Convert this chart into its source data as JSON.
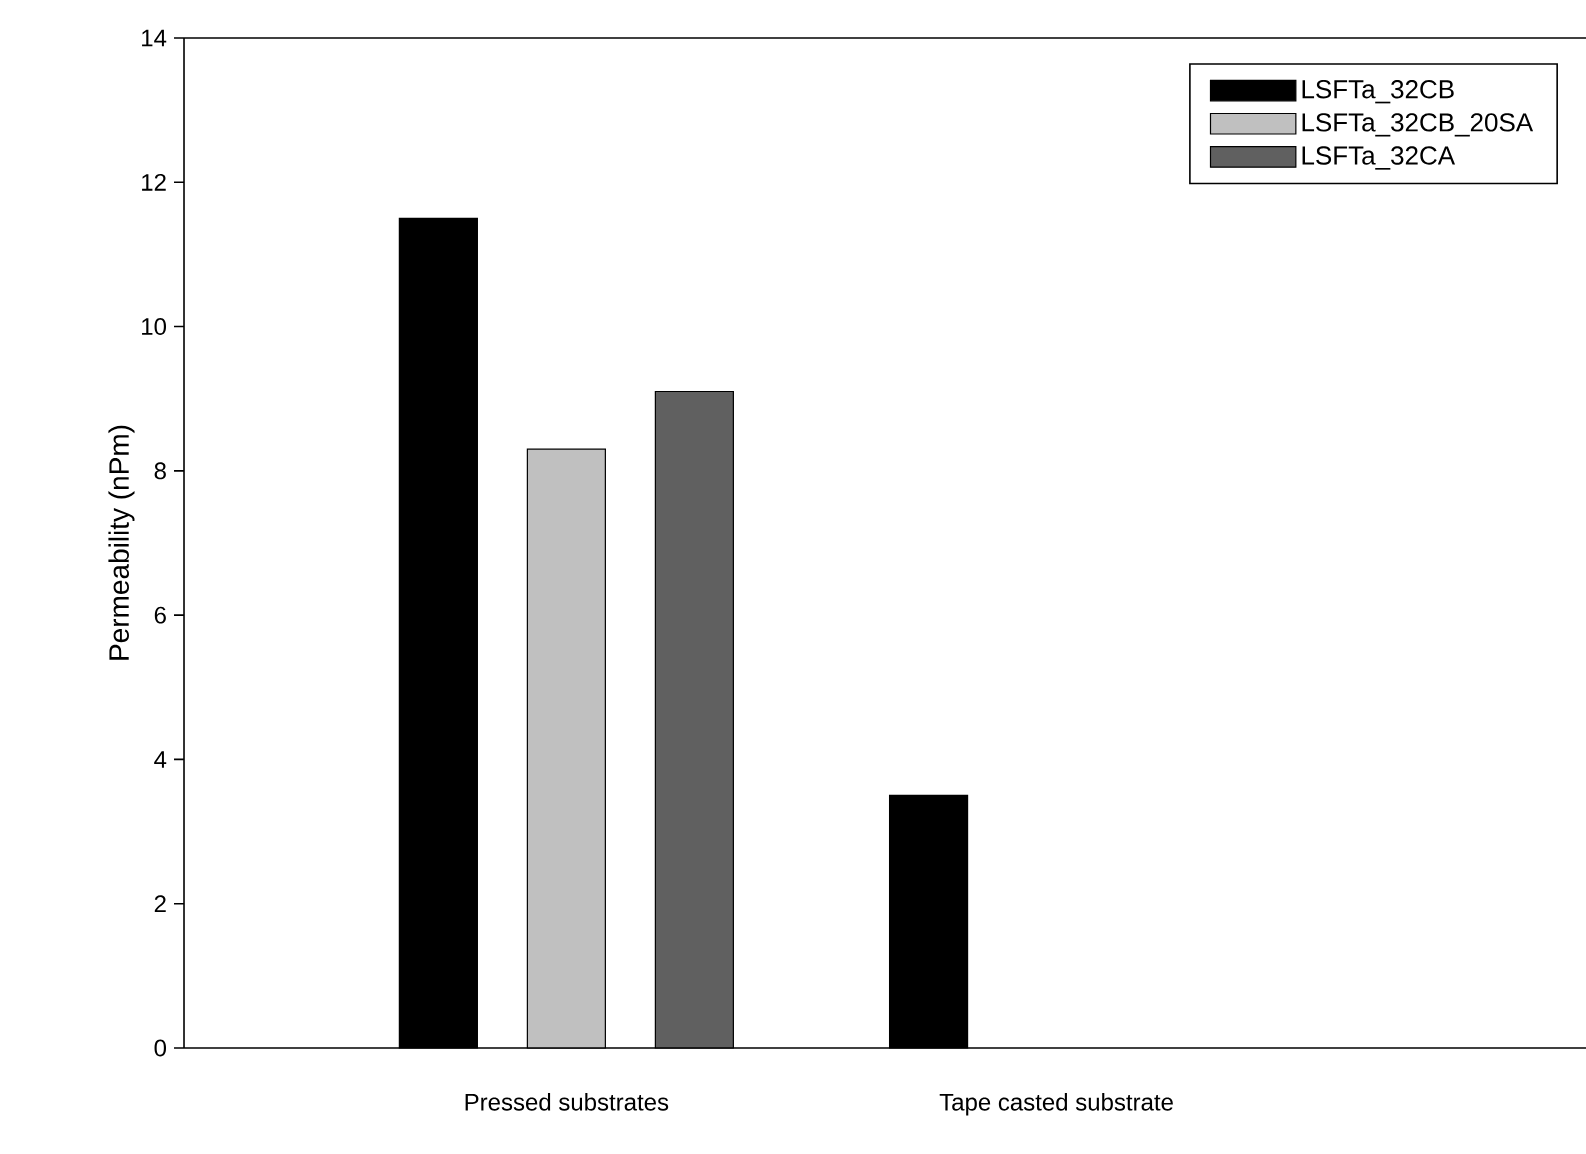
{
  "chart_data": {
    "type": "bar",
    "ylabel": "Permeability (nPm)",
    "categories": [
      "Pressed substrates",
      "Tape casted substrate"
    ],
    "series": [
      {
        "name": "LSFTa_32CB",
        "color": "#000000",
        "values": [
          11.5,
          3.5
        ]
      },
      {
        "name": "LSFTa_32CB_20SA",
        "color": "#c0c0c0",
        "values": [
          8.3,
          null
        ]
      },
      {
        "name": "LSFTa_32CA",
        "color": "#606060",
        "values": [
          9.1,
          null
        ]
      }
    ],
    "ylim": [
      0,
      14
    ],
    "yticks": [
      0,
      2,
      4,
      6,
      8,
      10,
      12,
      14
    ],
    "legend": "top right"
  }
}
